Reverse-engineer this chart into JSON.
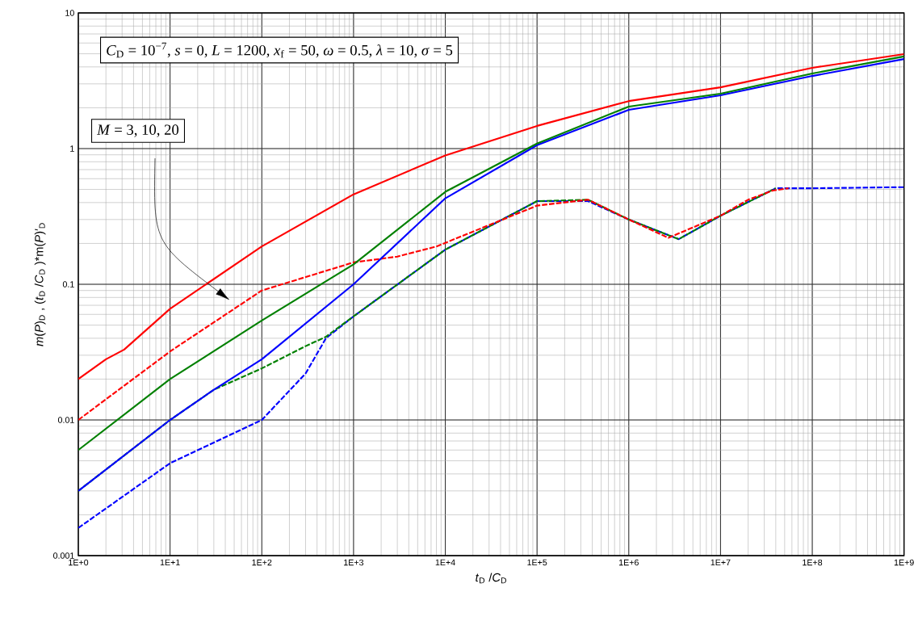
{
  "chart_data": {
    "type": "line",
    "xlabel": "*t*$_{D}$ /*C*$_{D}$",
    "ylabel": "*m*(*P*)$_{D}$ , (*t*$_{D}$ /*C*$_{D}$ )*m(*P*)′$_{D}$",
    "annotations": [
      "*C*$_{D}$ = 10$^{−7}$, *s* = 0, *L* = 1200, *x*$_{f}$ = 50, *ω* = 0.5, *λ* = 10, *σ* = 5",
      "*M* = 3, 10, 20"
    ],
    "log": "xy",
    "grid": true,
    "xlim": [
      1,
      1000000000
    ],
    "ylim": [
      0.001,
      10
    ],
    "xticks": [
      {
        "value": 1,
        "label": "1E+0"
      },
      {
        "value": 10,
        "label": "1E+1"
      },
      {
        "value": 100,
        "label": "1E+2"
      },
      {
        "value": 1000,
        "label": "1E+3"
      },
      {
        "value": 10000,
        "label": "1E+4"
      },
      {
        "value": 100000,
        "label": "1E+5"
      },
      {
        "value": 1000000,
        "label": "1E+6"
      },
      {
        "value": 10000000,
        "label": "1E+7"
      },
      {
        "value": 100000000,
        "label": "1E+8"
      },
      {
        "value": 1000000000,
        "label": "1E+9"
      }
    ],
    "yticks": [
      0.001,
      0.01,
      0.1,
      1,
      10
    ],
    "series": [
      {
        "color": "#ff0000",
        "line_style": "solid",
        "x": [
          1,
          2,
          3.16,
          10,
          100,
          1000,
          10000,
          100000,
          1000000,
          10000000,
          100000000,
          1000000000
        ],
        "values": [
          0.02,
          0.028,
          0.033,
          0.066,
          0.19,
          0.46,
          0.89,
          1.47,
          2.24,
          2.83,
          3.94,
          4.97
        ]
      },
      {
        "color": "#008000",
        "line_style": "solid",
        "x": [
          1,
          10,
          100,
          1000,
          10000,
          100000,
          1000000,
          10000000,
          100000000,
          1000000000
        ],
        "values": [
          0.006,
          0.02,
          0.054,
          0.14,
          0.48,
          1.09,
          2.04,
          2.54,
          3.58,
          4.78
        ]
      },
      {
        "color": "#0000ff",
        "line_style": "solid",
        "x": [
          1,
          10,
          30,
          100,
          1000,
          10000,
          100000,
          1000000,
          10000000,
          100000000,
          1000000000
        ],
        "values": [
          0.003,
          0.01,
          0.0167,
          0.028,
          0.1,
          0.43,
          1.06,
          1.93,
          2.47,
          3.43,
          4.57
        ]
      },
      {
        "color": "#ff0000",
        "line_style": "dashed",
        "x": [
          1,
          10,
          100,
          1000,
          3000,
          8000,
          100000,
          360000,
          1000000,
          2700000,
          10000000,
          20000000,
          37000000,
          55000000
        ],
        "values": [
          0.01,
          0.032,
          0.09,
          0.145,
          0.16,
          0.19,
          0.38,
          0.42,
          0.3,
          0.22,
          0.32,
          0.42,
          0.49,
          0.51
        ]
      },
      {
        "color": "#008000",
        "line_style": "dashed",
        "x": [
          1,
          10,
          30,
          100,
          300,
          500,
          600,
          1000,
          10000,
          100000,
          360000,
          1000000,
          3500000,
          10000000,
          40000000
        ],
        "values": [
          0.003,
          0.01,
          0.0167,
          0.024,
          0.035,
          0.041,
          0.045,
          0.058,
          0.18,
          0.41,
          0.42,
          0.3,
          0.215,
          0.32,
          0.51
        ]
      },
      {
        "color": "#0000ff",
        "line_style": "dashed",
        "x": [
          1,
          10,
          100,
          300,
          500,
          1000,
          10000,
          100000,
          360000,
          1000000,
          3500000,
          10000000,
          40000000,
          100000000,
          1000000000
        ],
        "values": [
          0.0016,
          0.0048,
          0.01,
          0.022,
          0.04,
          0.058,
          0.18,
          0.41,
          0.41,
          0.3,
          0.215,
          0.32,
          0.51,
          0.51,
          0.52
        ]
      }
    ]
  }
}
